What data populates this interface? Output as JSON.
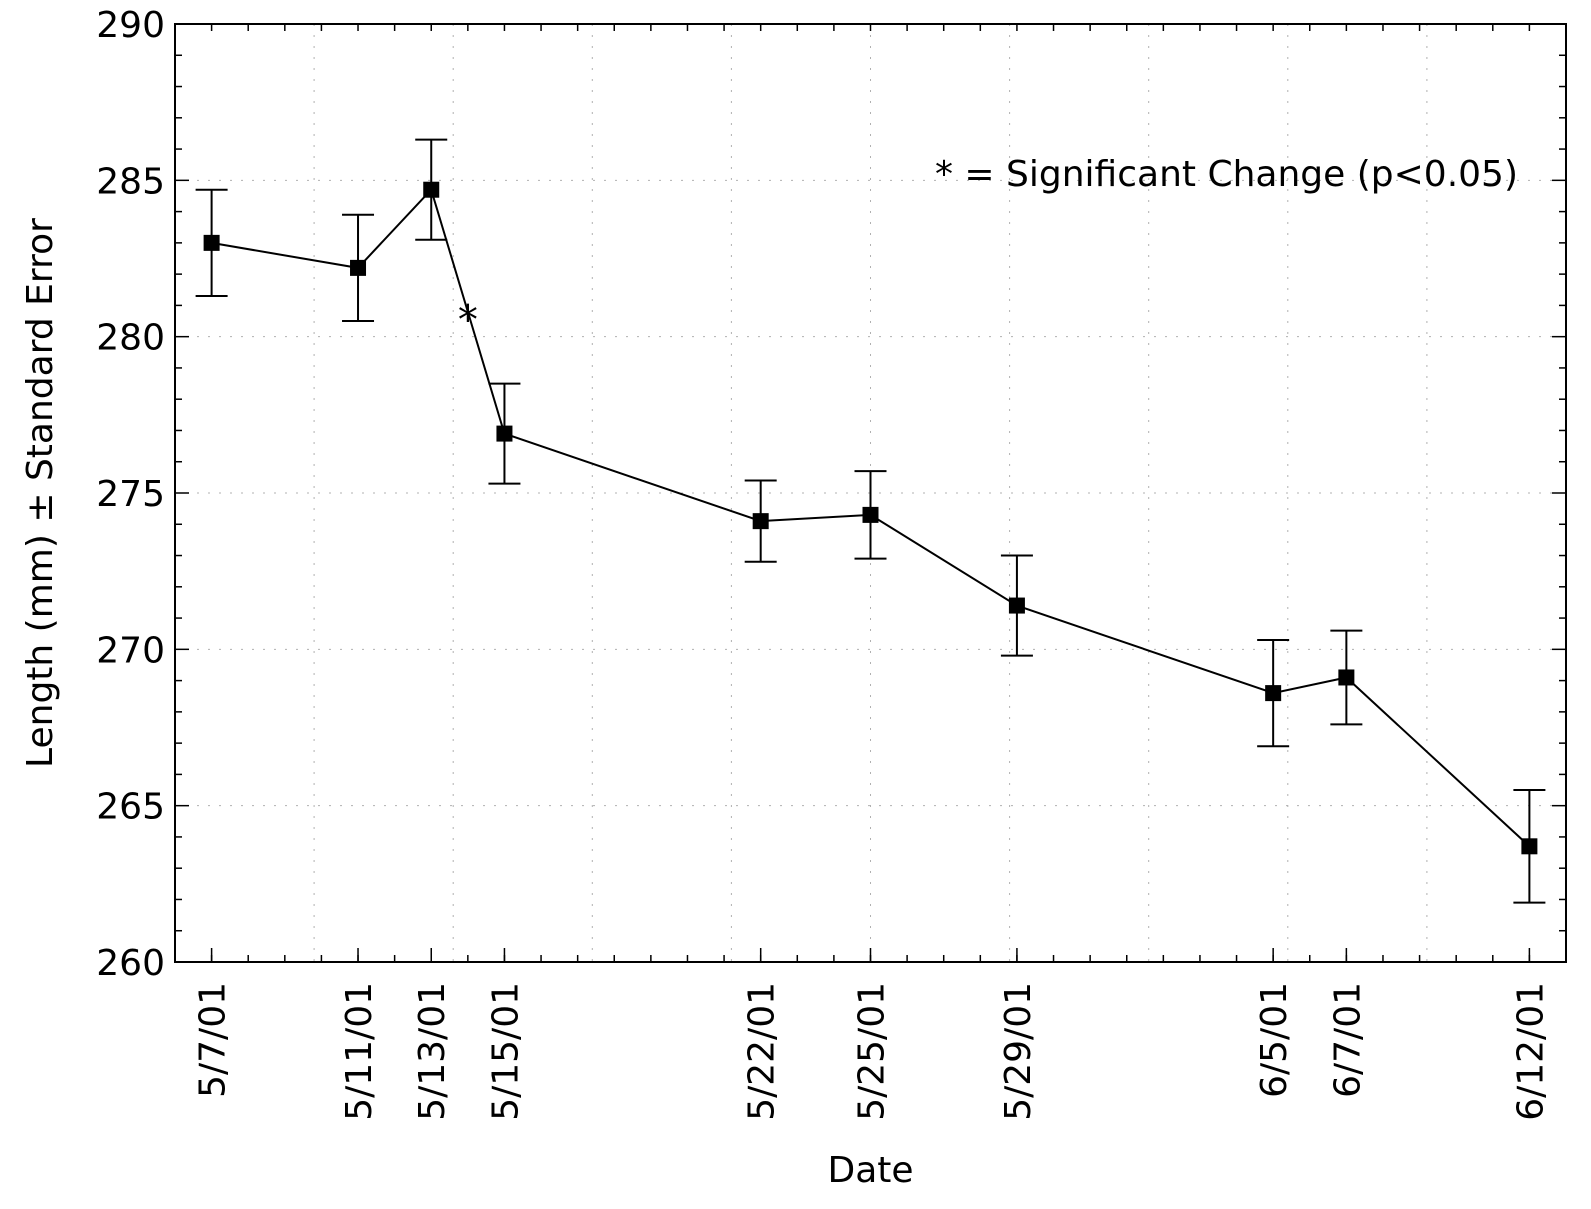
{
  "chart_data": {
    "type": "line",
    "xlabel": "Date",
    "ylabel": "Length (mm) ± Standard Error",
    "ylim": [
      260,
      290
    ],
    "yticks": [
      260,
      265,
      270,
      275,
      280,
      285,
      290
    ],
    "grid": "dotted",
    "legend_text": "* = Significant Change (p<0.05)",
    "legend_position": "top-right",
    "xlim": [
      "5/6/01",
      "6/13/01"
    ],
    "x": [
      "5/7/01",
      "5/11/01",
      "5/13/01",
      "5/15/01",
      "5/22/01",
      "5/25/01",
      "5/29/01",
      "6/5/01",
      "6/7/01",
      "6/12/01"
    ],
    "series": [
      {
        "values": [
          283.0,
          282.2,
          284.7,
          276.9,
          274.1,
          274.3,
          271.4,
          268.6,
          269.1,
          263.7
        ],
        "error": [
          1.7,
          1.7,
          1.6,
          1.6,
          1.3,
          1.4,
          1.6,
          1.7,
          1.5,
          1.8
        ],
        "marker": "square",
        "color": "#000000"
      }
    ],
    "annotations": [
      {
        "text": "*",
        "between": [
          "5/13/01",
          "5/15/01"
        ],
        "y": 280.8
      }
    ]
  }
}
